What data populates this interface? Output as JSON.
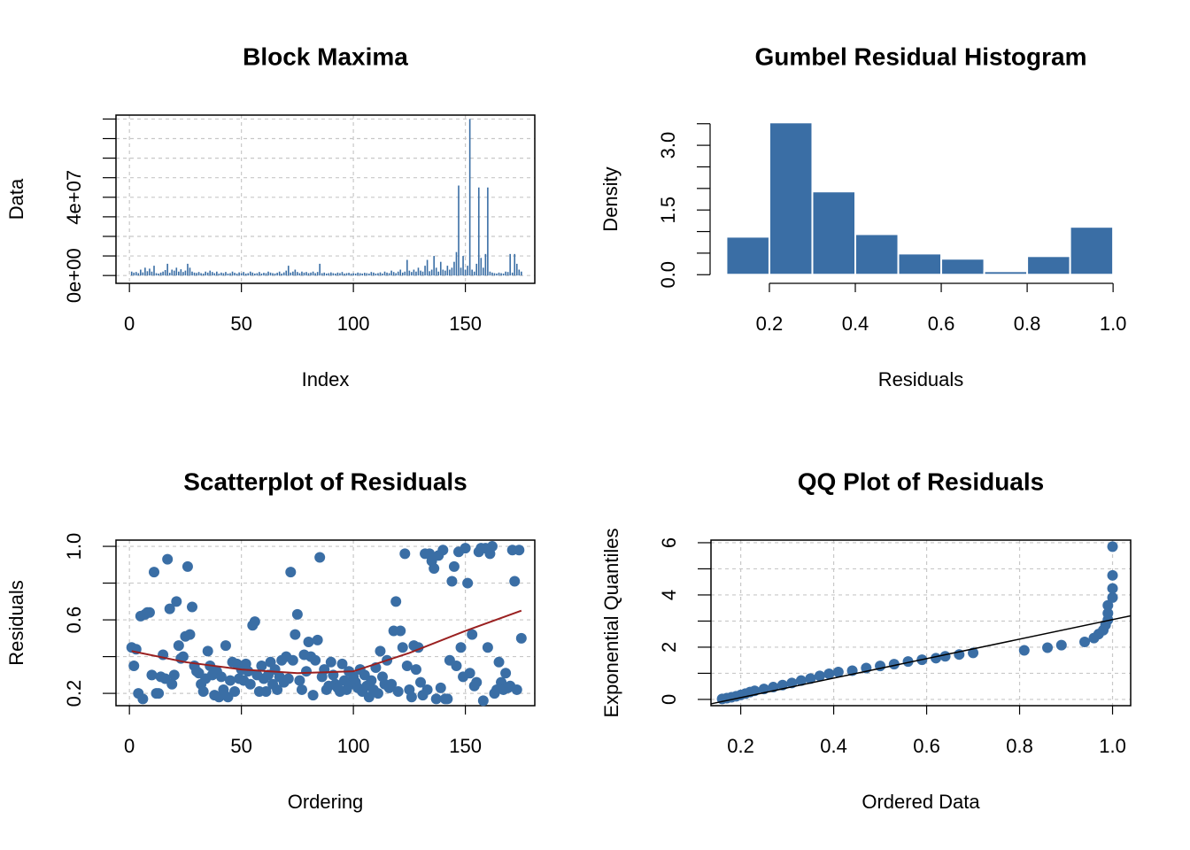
{
  "chart_data": [
    {
      "type": "bar",
      "title": "Block Maxima",
      "xlabel": "Index",
      "ylabel": "Data",
      "color": "#3a6ea5",
      "frame": true,
      "grid": true,
      "xlim": [
        -6,
        181
      ],
      "ylim": [
        -4000000,
        82000000
      ],
      "xticks": [
        0,
        50,
        100,
        150
      ],
      "yticks": [
        {
          "value": 0,
          "label": "0e+00"
        },
        {
          "value": 40000000,
          "label": "4e+07"
        }
      ],
      "yminor": [
        10000000,
        20000000,
        30000000,
        50000000,
        60000000,
        70000000,
        80000000
      ],
      "x": [
        1,
        2,
        3,
        4,
        5,
        6,
        7,
        8,
        9,
        10,
        11,
        12,
        13,
        14,
        15,
        16,
        17,
        18,
        19,
        20,
        21,
        22,
        23,
        24,
        25,
        26,
        27,
        28,
        29,
        30,
        31,
        32,
        33,
        34,
        35,
        36,
        37,
        38,
        39,
        40,
        41,
        42,
        43,
        44,
        45,
        46,
        47,
        48,
        49,
        50,
        51,
        52,
        53,
        54,
        55,
        56,
        57,
        58,
        59,
        60,
        61,
        62,
        63,
        64,
        65,
        66,
        67,
        68,
        69,
        70,
        71,
        72,
        73,
        74,
        75,
        76,
        77,
        78,
        79,
        80,
        81,
        82,
        83,
        84,
        85,
        86,
        87,
        88,
        89,
        90,
        91,
        92,
        93,
        94,
        95,
        96,
        97,
        98,
        99,
        100,
        101,
        102,
        103,
        104,
        105,
        106,
        107,
        108,
        109,
        110,
        111,
        112,
        113,
        114,
        115,
        116,
        117,
        118,
        119,
        120,
        121,
        122,
        123,
        124,
        125,
        126,
        127,
        128,
        129,
        130,
        131,
        132,
        133,
        134,
        135,
        136,
        137,
        138,
        139,
        140,
        141,
        142,
        143,
        144,
        145,
        146,
        147,
        148,
        149,
        150,
        151,
        152,
        153,
        154,
        155,
        156,
        157,
        158,
        159,
        160,
        161,
        162,
        163,
        164,
        165,
        166,
        167,
        168,
        169,
        170,
        171,
        172,
        173,
        174,
        175
      ],
      "values": [
        2000000.0,
        1500000.0,
        1800000.0,
        1200000.0,
        3000000.0,
        1600000.0,
        4000000.0,
        2200000.0,
        3500000.0,
        2000000.0,
        5000000.0,
        1200000.0,
        1000000.0,
        1500000.0,
        2000000.0,
        2800000.0,
        6000000.0,
        1400000.0,
        3000000.0,
        2500000.0,
        4000000.0,
        2000000.0,
        3200000.0,
        1800000.0,
        2500000.0,
        6000000.0,
        4000000.0,
        2000000.0,
        1500000.0,
        1300000.0,
        1800000.0,
        1200000.0,
        1000000.0,
        2000000.0,
        1500000.0,
        2500000.0,
        1800000.0,
        1200000.0,
        2000000.0,
        1000000.0,
        1500000.0,
        1200000.0,
        1800000.0,
        1000000.0,
        1200000.0,
        2000000.0,
        1400000.0,
        1000000.0,
        1600000.0,
        1200000.0,
        1800000.0,
        1000000.0,
        1200000.0,
        2000000.0,
        1500000.0,
        1000000.0,
        1200000.0,
        1800000.0,
        1000000.0,
        1400000.0,
        1200000.0,
        2000000.0,
        1500000.0,
        1200000.0,
        1000000.0,
        1400000.0,
        2000000.0,
        1000000.0,
        1600000.0,
        2500000.0,
        5000000.0,
        1500000.0,
        2000000.0,
        3000000.0,
        1800000.0,
        1200000.0,
        2000000.0,
        1500000.0,
        1800000.0,
        1200000.0,
        1500000.0,
        2000000.0,
        1200000.0,
        1800000.0,
        6000000.0,
        1200000.0,
        1500000.0,
        1000000.0,
        1200000.0,
        1600000.0,
        1200000.0,
        1000000.0,
        1500000.0,
        1200000.0,
        1800000.0,
        1000000.0,
        1200000.0,
        1400000.0,
        1000000.0,
        1200000.0,
        1000000.0,
        1500000.0,
        1200000.0,
        1000000.0,
        1400000.0,
        1200000.0,
        1000000.0,
        1800000.0,
        1500000.0,
        1000000.0,
        1200000.0,
        1600000.0,
        1000000.0,
        2000000.0,
        1500000.0,
        1200000.0,
        2500000.0,
        1800000.0,
        1200000.0,
        2000000.0,
        3000000.0,
        1500000.0,
        2000000.0,
        8000000.0,
        2500000.0,
        1800000.0,
        3000000.0,
        2000000.0,
        4000000.0,
        2500000.0,
        2000000.0,
        5000000.0,
        8000000.0,
        2200000.0,
        3000000.0,
        10000000.0,
        4000000.0,
        2000000.0,
        7000000.0,
        3000000.0,
        2500000.0,
        5000000.0,
        3000000.0,
        4000000.0,
        7000000.0,
        12000000.0,
        46000000.0,
        4000000.0,
        10000000.0,
        3000000.0,
        5000000.0,
        80000000.0,
        3000000.0,
        2000000.0,
        6000000.0,
        45000000.0,
        9000000.0,
        4000000.0,
        11000000.0,
        45000000.0,
        2000000.0,
        1500000.0,
        1200000.0,
        1000000.0,
        1500000.0,
        1200000.0,
        1000000.0,
        2000000.0,
        1800000.0,
        11000000.0,
        1500000.0,
        11000000.0,
        6000000.0,
        3000000.0,
        2000000.0
      ]
    },
    {
      "type": "histogram",
      "title": "Gumbel Residual Histogram",
      "xlabel": "Residuals",
      "ylabel": "Density",
      "color": "#3a6ea5",
      "frame": false,
      "grid": false,
      "xlim": [
        0.062,
        1.043
      ],
      "ylim": [
        -0.2,
        3.7
      ],
      "xticks": [
        0.2,
        0.4,
        0.6,
        0.8,
        {
          "value": 1,
          "label": "1.0"
        }
      ],
      "yticks": [
        {
          "value": 0,
          "label": "0.0"
        },
        1.5,
        {
          "value": 3,
          "label": "3.0"
        }
      ],
      "yminor": [
        0.5,
        1,
        2,
        2.5,
        3.5
      ],
      "bins": [
        0.1,
        0.2,
        0.3,
        0.4,
        0.5,
        0.6,
        0.7,
        0.8,
        0.9,
        1.0
      ],
      "values": [
        0.88,
        3.53,
        1.93,
        0.94,
        0.49,
        0.37,
        0.08,
        0.43,
        1.11
      ]
    },
    {
      "type": "scatter",
      "title": "Scatterplot of Residuals",
      "xlabel": "Ordering",
      "ylabel": "Residuals",
      "color": "#3a6ea5",
      "frame": true,
      "grid": true,
      "xlim": [
        -6,
        181
      ],
      "ylim": [
        0.133,
        1.034
      ],
      "xticks": [
        0,
        50,
        100,
        150
      ],
      "yticks": [
        0.2,
        0.6,
        {
          "value": 1,
          "label": "1.0"
        }
      ],
      "yminor": [
        0.4,
        0.8
      ],
      "x": [
        1,
        2,
        3,
        4,
        5,
        6,
        7,
        8,
        9,
        10,
        11,
        12,
        13,
        14,
        15,
        16,
        17,
        18,
        19,
        20,
        21,
        22,
        23,
        24,
        25,
        26,
        27,
        28,
        29,
        30,
        31,
        32,
        33,
        34,
        35,
        36,
        37,
        38,
        39,
        40,
        41,
        42,
        43,
        44,
        45,
        46,
        47,
        48,
        49,
        50,
        51,
        52,
        53,
        54,
        55,
        56,
        57,
        58,
        59,
        60,
        61,
        62,
        63,
        64,
        65,
        66,
        67,
        68,
        69,
        70,
        71,
        72,
        73,
        74,
        75,
        76,
        77,
        78,
        79,
        80,
        81,
        82,
        83,
        84,
        85,
        86,
        87,
        88,
        89,
        90,
        91,
        92,
        93,
        94,
        95,
        96,
        97,
        98,
        99,
        100,
        101,
        102,
        103,
        104,
        105,
        106,
        107,
        108,
        109,
        110,
        111,
        112,
        113,
        114,
        115,
        116,
        117,
        118,
        119,
        120,
        121,
        122,
        123,
        124,
        125,
        126,
        127,
        128,
        129,
        130,
        131,
        132,
        133,
        134,
        135,
        136,
        137,
        138,
        139,
        140,
        141,
        142,
        143,
        144,
        145,
        146,
        147,
        148,
        149,
        150,
        151,
        152,
        153,
        154,
        155,
        156,
        157,
        158,
        159,
        160,
        161,
        162,
        163,
        164,
        165,
        166,
        167,
        168,
        169,
        170,
        171,
        172,
        173,
        174,
        175
      ],
      "values": [
        0.45,
        0.35,
        0.44,
        0.2,
        0.62,
        0.17,
        0.63,
        0.64,
        0.64,
        0.3,
        0.86,
        0.2,
        0.2,
        0.29,
        0.41,
        0.28,
        0.93,
        0.66,
        0.25,
        0.3,
        0.7,
        0.46,
        0.39,
        0.4,
        0.51,
        0.89,
        0.52,
        0.67,
        0.35,
        0.32,
        0.31,
        0.25,
        0.21,
        0.28,
        0.43,
        0.35,
        0.3,
        0.19,
        0.32,
        0.18,
        0.29,
        0.22,
        0.46,
        0.18,
        0.27,
        0.37,
        0.21,
        0.36,
        0.28,
        0.33,
        0.27,
        0.36,
        0.32,
        0.25,
        0.57,
        0.59,
        0.3,
        0.21,
        0.35,
        0.28,
        0.21,
        0.3,
        0.37,
        0.25,
        0.33,
        0.22,
        0.29,
        0.38,
        0.26,
        0.4,
        0.28,
        0.86,
        0.38,
        0.52,
        0.63,
        0.27,
        0.22,
        0.41,
        0.32,
        0.48,
        0.4,
        0.19,
        0.38,
        0.49,
        0.94,
        0.29,
        0.33,
        0.22,
        0.24,
        0.37,
        0.3,
        0.25,
        0.23,
        0.21,
        0.36,
        0.27,
        0.22,
        0.32,
        0.25,
        0.29,
        0.26,
        0.23,
        0.33,
        0.21,
        0.3,
        0.24,
        0.18,
        0.27,
        0.22,
        0.34,
        0.2,
        0.43,
        0.29,
        0.25,
        0.38,
        0.23,
        0.25,
        0.54,
        0.7,
        0.21,
        0.54,
        0.45,
        0.96,
        0.35,
        0.22,
        0.18,
        0.46,
        0.33,
        0.45,
        0.26,
        0.19,
        0.96,
        0.22,
        0.96,
        0.92,
        0.88,
        0.17,
        0.95,
        0.23,
        0.98,
        0.17,
        0.17,
        0.38,
        0.81,
        0.89,
        0.35,
        0.97,
        0.45,
        0.29,
        0.99,
        0.8,
        0.31,
        0.52,
        0.24,
        0.26,
        0.97,
        0.99,
        0.16,
        0.99,
        0.45,
        0.96,
        1.0,
        0.2,
        0.22,
        0.37,
        0.26,
        0.22,
        0.31,
        0.23,
        0.24,
        0.98,
        0.81,
        0.22,
        0.98,
        0.5
      ],
      "trend": {
        "color": "#9a2020",
        "x": [
          1,
          25,
          50,
          75,
          100,
          125,
          150,
          175
        ],
        "y": [
          0.43,
          0.37,
          0.33,
          0.31,
          0.32,
          0.42,
          0.54,
          0.65
        ]
      }
    },
    {
      "type": "scatter",
      "title": "QQ Plot of Residuals",
      "xlabel": "Ordered Data",
      "ylabel": "Exponential Quantiles",
      "color": "#3a6ea5",
      "frame": true,
      "grid": true,
      "xlim": [
        0.136,
        1.039
      ],
      "ylim": [
        -0.24,
        6.1
      ],
      "xticks": [
        0.2,
        0.4,
        0.6,
        0.8,
        {
          "value": 1,
          "label": "1.0"
        }
      ],
      "yticks": [
        0,
        2,
        4,
        6
      ],
      "yminor": [
        1,
        3,
        5
      ],
      "x": [
        0.16,
        0.17,
        0.18,
        0.19,
        0.2,
        0.21,
        0.22,
        0.23,
        0.25,
        0.27,
        0.29,
        0.31,
        0.33,
        0.35,
        0.37,
        0.39,
        0.41,
        0.44,
        0.47,
        0.5,
        0.53,
        0.56,
        0.59,
        0.62,
        0.64,
        0.67,
        0.7,
        0.81,
        0.86,
        0.89,
        0.94,
        0.96,
        0.97,
        0.98,
        0.985,
        0.99,
        0.99,
        0.99,
        1.0,
        1.0,
        1.0,
        1.0
      ],
      "values": [
        0.02,
        0.05,
        0.08,
        0.12,
        0.17,
        0.22,
        0.28,
        0.33,
        0.4,
        0.47,
        0.55,
        0.63,
        0.72,
        0.8,
        0.9,
        0.98,
        1.05,
        1.1,
        1.2,
        1.28,
        1.35,
        1.45,
        1.52,
        1.58,
        1.65,
        1.72,
        1.78,
        1.88,
        1.98,
        2.08,
        2.2,
        2.35,
        2.5,
        2.65,
        2.85,
        3.05,
        3.3,
        3.6,
        3.9,
        4.25,
        4.75,
        5.85
      ],
      "line": {
        "color": "#000000",
        "x": [
          0.136,
          1.039
        ],
        "y": [
          -0.17,
          3.2
        ]
      }
    }
  ]
}
